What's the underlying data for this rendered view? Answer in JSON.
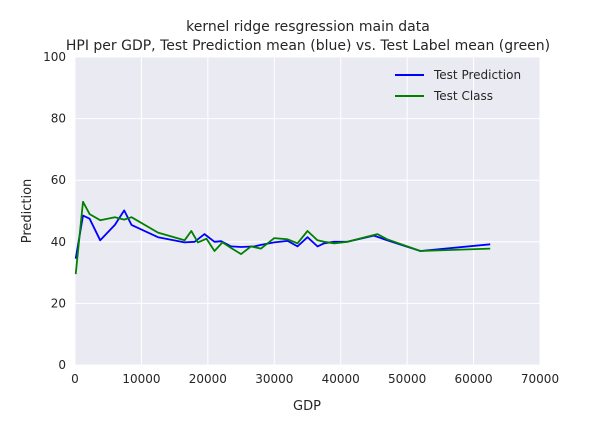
{
  "chart_data": {
    "type": "line",
    "title": "kernel ridge resgression main data",
    "subtitle": "HPI per GDP, Test Prediction mean (blue) vs. Test Label mean (green)",
    "xlabel": "GDP",
    "ylabel": "Prediction",
    "xlim": [
      0,
      70000
    ],
    "ylim": [
      0,
      100
    ],
    "xticks": [
      0,
      10000,
      20000,
      30000,
      40000,
      50000,
      60000,
      70000
    ],
    "yticks": [
      0,
      20,
      40,
      60,
      80,
      100
    ],
    "grid": true,
    "legend_position": "top-right",
    "series": [
      {
        "name": "Test Prediction",
        "color": "#0000ff",
        "x": [
          100,
          1200,
          2200,
          3800,
          6000,
          7400,
          8500,
          12500,
          16500,
          18000,
          19500,
          21000,
          22000,
          23500,
          25000,
          27000,
          28000,
          30000,
          32000,
          33500,
          35000,
          36500,
          37500,
          39000,
          41000,
          45000,
          47000,
          52000,
          62500
        ],
        "y": [
          34.5,
          48.5,
          47.5,
          40.5,
          45.5,
          50.2,
          45.5,
          41.5,
          39.8,
          40.0,
          42.5,
          40.0,
          40.2,
          38.5,
          38.3,
          38.5,
          39.0,
          39.8,
          40.3,
          38.5,
          41.5,
          38.5,
          39.5,
          40.0,
          40.0,
          42.0,
          40.5,
          37.0,
          39.2
        ]
      },
      {
        "name": "Test Class",
        "color": "#008000",
        "x": [
          100,
          1200,
          2200,
          3800,
          6000,
          7400,
          8500,
          12500,
          16500,
          17500,
          18500,
          19800,
          21000,
          22200,
          23500,
          25000,
          26500,
          28000,
          30000,
          32000,
          33500,
          35000,
          36500,
          37500,
          39000,
          41000,
          45500,
          47000,
          52000,
          62500
        ],
        "y": [
          29.5,
          53.0,
          49.0,
          47.0,
          48.0,
          47.2,
          48.0,
          43.0,
          40.5,
          43.5,
          39.8,
          41.0,
          37.0,
          39.8,
          38.0,
          36.0,
          38.5,
          37.8,
          41.2,
          40.8,
          39.5,
          43.5,
          40.5,
          40.0,
          39.5,
          40.0,
          42.5,
          40.8,
          37.0,
          37.8
        ]
      }
    ]
  }
}
